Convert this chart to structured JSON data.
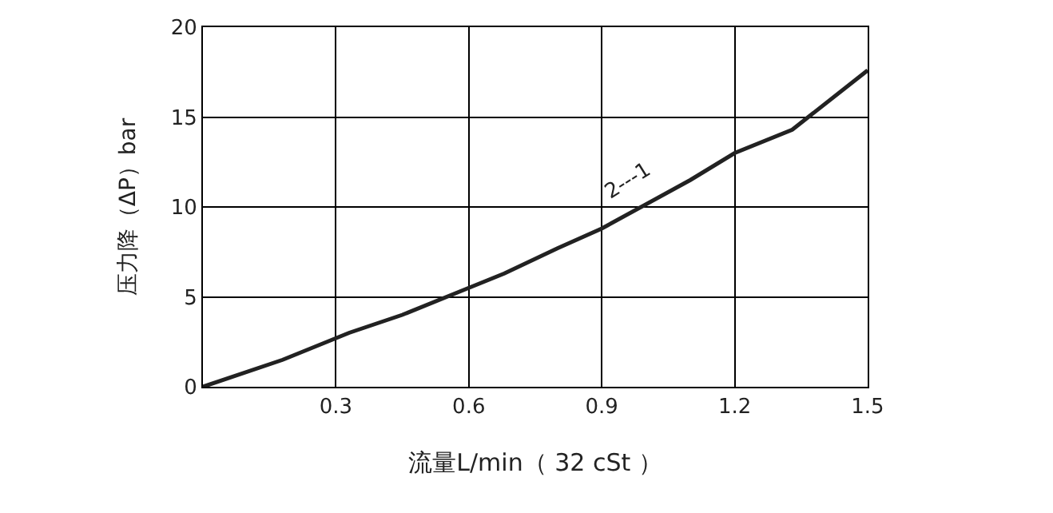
{
  "chart_data": {
    "type": "line",
    "xlabel": "流量L/min（ 32 cSt ）",
    "ylabel": "压力降（ΔP）bar",
    "x": [
      0,
      0.18,
      0.33,
      0.45,
      0.6,
      0.68,
      0.8,
      0.9,
      1.1,
      1.2,
      1.33,
      1.5
    ],
    "series": [
      {
        "color": "#222222",
        "values": [
          0,
          1.5,
          3.0,
          4.0,
          5.5,
          6.3,
          7.7,
          8.8,
          11.5,
          13.0,
          14.3,
          17.6
        ]
      }
    ],
    "xlim": [
      0,
      1.5
    ],
    "xticks": [
      0.3,
      0.6,
      0.9,
      1.2,
      1.5
    ],
    "ylim": [
      0,
      20
    ],
    "yticks": [
      0,
      5,
      10,
      15,
      20
    ],
    "grid": true,
    "legend": false,
    "marker": "none",
    "line_style": "solid",
    "annotations": [
      "2---1"
    ]
  }
}
